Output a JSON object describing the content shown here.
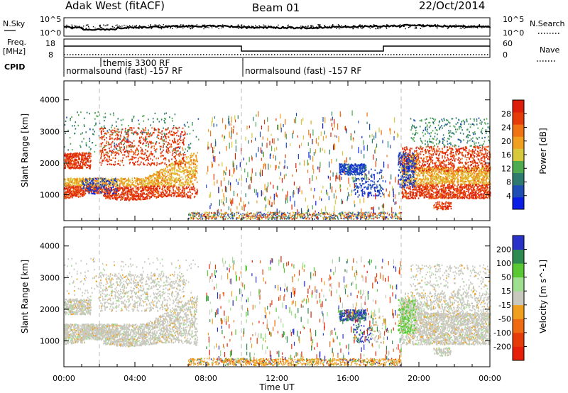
{
  "header": {
    "station": "Adak West (fitACF)",
    "beam": "Beam 01",
    "date": "22/Oct/2014"
  },
  "top_strip": {
    "left_label": "N.Sky",
    "left_ticks": [
      "10^5",
      "10^0"
    ],
    "right_label": "N.Search",
    "right_ticks": [
      "10^5",
      "10^0"
    ]
  },
  "freq_strip": {
    "left_label_line1": "Freq.",
    "left_label_line2": "[MHz]",
    "left_ticks": [
      "18",
      "8"
    ],
    "right_label": "Nave",
    "right_ticks": [
      "60",
      "0"
    ]
  },
  "cpid": {
    "label": "CPID",
    "segments": [
      {
        "name": "normalsound (fast) -157 RF",
        "start_hour": 0,
        "end_hour": 10
      },
      {
        "name": "themis 3300 RF",
        "start_hour": 2,
        "end_hour": 2.1
      },
      {
        "name": "normalsound (fast) -157 RF",
        "start_hour": 10,
        "end_hour": 24
      }
    ]
  },
  "chart_data": [
    {
      "type": "heatmap",
      "quantity": "Power",
      "ylabel": "Slant Range [km]",
      "ylim": [
        180,
        4600
      ],
      "yticks": [
        1000,
        2000,
        3000,
        4000
      ],
      "xlim": [
        0,
        24
      ],
      "xticks": [
        0,
        4,
        8,
        12,
        16,
        20,
        24
      ],
      "colorbar": {
        "label": "Power [dB]",
        "ticks": [
          4,
          8,
          12,
          16,
          20,
          24,
          28
        ],
        "range": [
          0,
          32
        ],
        "colors": [
          "#0a1ee6",
          "#1f4fb4",
          "#2e7a6e",
          "#4faa50",
          "#d7c83c",
          "#f0a01e",
          "#f07314",
          "#e63c0a",
          "#dc1e0a"
        ]
      }
    },
    {
      "type": "heatmap",
      "quantity": "Velocity",
      "ylabel": "Slant Range [km]",
      "ylim": [
        180,
        4600
      ],
      "yticks": [
        1000,
        2000,
        3000,
        4000
      ],
      "xlim": [
        0,
        24
      ],
      "xticks": [
        0,
        4,
        8,
        12,
        16,
        20,
        24
      ],
      "colorbar": {
        "label": "Velocity [m s^-1]",
        "ticks": [
          200,
          100,
          50,
          15,
          -15,
          -50,
          -100,
          -200
        ],
        "range": [
          -250,
          250
        ],
        "colors": [
          "#2832c8",
          "#2e8a4e",
          "#5ac832",
          "#9ee090",
          "#c8c8be",
          "#f0a01e",
          "#f06a14",
          "#e63c0a",
          "#e61e0a"
        ]
      }
    }
  ],
  "x_tick_labels": [
    "00:00",
    "04:00",
    "08:00",
    "12:00",
    "16:00",
    "20:00",
    "00:00"
  ],
  "xlabel": "Time UT"
}
